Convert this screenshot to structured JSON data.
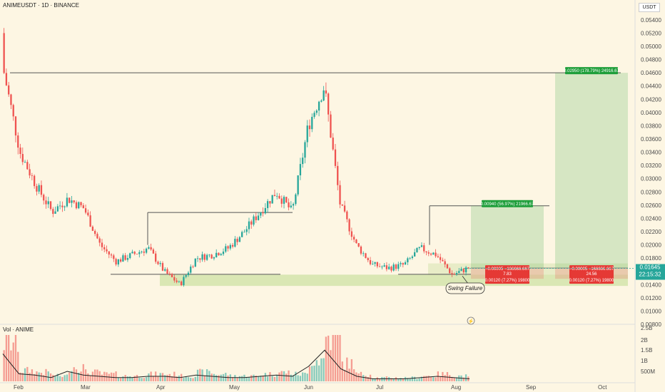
{
  "header": {
    "title": "ANIMEUSDT · 1D · BINANCE"
  },
  "price_axis": {
    "currency": "USDT",
    "ticks": [
      "0.05600",
      "0.05400",
      "0.05200",
      "0.05000",
      "0.04800",
      "0.04600",
      "0.04400",
      "0.04200",
      "0.04000",
      "0.03800",
      "0.03600",
      "0.03400",
      "0.03200",
      "0.03000",
      "0.02800",
      "0.02600",
      "0.02400",
      "0.02200",
      "0.02000",
      "0.01800",
      "0.01400",
      "0.01200",
      "0.01000",
      "0.00800"
    ],
    "current_price": "0.01645",
    "countdown": "22:15:32"
  },
  "volume_pane": {
    "title": "Vol · ANIME",
    "ticks": [
      "2.5B",
      "2B",
      "1.5B",
      "1B",
      "500M"
    ]
  },
  "time_axis": {
    "ticks": [
      "Feb",
      "Mar",
      "Apr",
      "May",
      "Jun",
      "Jul",
      "Aug",
      "Sep",
      "Oct"
    ]
  },
  "positions": {
    "first": {
      "target_label": "0.00940 (56.97%) 21966.67",
      "entry_label_line1": "−0.00005 −166666.667",
      "entry_label_line2": "7.83",
      "stop_label": "0.00120 (7.27%) 19800"
    },
    "second": {
      "target_label": "0.02950 (178.79%) 24916.67",
      "entry_label_line1": "−0.00005 −166666.667",
      "entry_label_line2": "24.56",
      "stop_label": "0.00120 (7.27%) 19800"
    }
  },
  "annotations": {
    "swing_failure": "Swing Failure"
  },
  "colors": {
    "background": "#fdf6e3",
    "up": "#26a69a",
    "down": "#ef5350",
    "target_zone": "rgba(76,175,80,0.22)",
    "stop_zone": "rgba(239,83,80,0.22)",
    "support_zone": "rgba(139,195,74,0.30)",
    "current_price": "#26a69a"
  },
  "chart_data": {
    "type": "candlestick",
    "symbol": "ANIMEUSDT",
    "interval": "1D",
    "exchange": "BINANCE",
    "ylim": [
      0.008,
      0.057
    ],
    "x": [
      "Jan 25",
      "Feb 1",
      "Feb 8",
      "Feb 15",
      "Feb 22",
      "Mar 1",
      "Mar 8",
      "Mar 15",
      "Mar 22",
      "Mar 29",
      "Apr 5",
      "Apr 12",
      "Apr 19",
      "Apr 26",
      "May 3",
      "May 10",
      "May 17",
      "May 24",
      "May 31",
      "Jun 7",
      "Jun 10",
      "Jun 14",
      "Jun 21",
      "Jun 28",
      "Jul 5",
      "Jul 12",
      "Jul 19",
      "Jul 26",
      "Aug 1",
      "Aug 5"
    ],
    "close": [
      0.046,
      0.034,
      0.029,
      0.025,
      0.027,
      0.0255,
      0.02,
      0.0175,
      0.0185,
      0.0195,
      0.016,
      0.014,
      0.018,
      0.0185,
      0.0195,
      0.022,
      0.025,
      0.028,
      0.025,
      0.038,
      0.044,
      0.026,
      0.02,
      0.017,
      0.0165,
      0.017,
      0.0195,
      0.0185,
      0.0155,
      0.0165
    ],
    "volume_B": [
      2.2,
      0.6,
      0.5,
      0.3,
      0.8,
      0.5,
      0.4,
      0.3,
      0.3,
      0.4,
      0.4,
      0.3,
      0.5,
      0.4,
      0.3,
      0.3,
      0.4,
      0.5,
      0.4,
      1.2,
      2.5,
      1.0,
      0.4,
      0.2,
      0.2,
      0.2,
      0.3,
      0.4,
      0.3,
      0.2
    ],
    "levels": {
      "resistance_high": 0.046,
      "resistance_mid": 0.0249,
      "support": 0.0155,
      "zone_top": 0.0155,
      "zone_bottom": 0.0138
    },
    "trades": [
      {
        "entry": 0.0165,
        "target": 0.0259,
        "stop": 0.0153
      },
      {
        "entry": 0.0165,
        "target": 0.046,
        "stop": 0.0153
      }
    ]
  }
}
